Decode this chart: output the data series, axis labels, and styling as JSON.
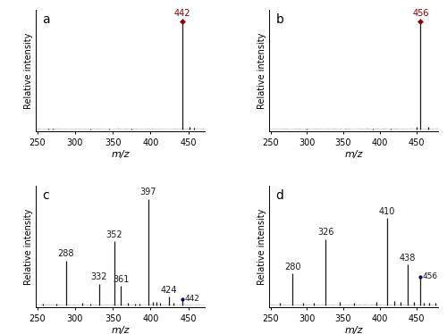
{
  "panels": [
    {
      "label": "a",
      "xlim": [
        248,
        472
      ],
      "xticks": [
        250,
        300,
        350,
        400,
        450
      ],
      "peaks": [
        {
          "mz": 442,
          "intensity": 100,
          "annotate": true,
          "main": true
        },
        {
          "mz": 452,
          "intensity": 2.0
        },
        {
          "mz": 458,
          "intensity": 1.5
        },
        {
          "mz": 375,
          "intensity": 0.6
        },
        {
          "mz": 265,
          "intensity": 0.5
        },
        {
          "mz": 271,
          "intensity": 0.4
        },
        {
          "mz": 320,
          "intensity": 0.5
        },
        {
          "mz": 345,
          "intensity": 0.4
        }
      ]
    },
    {
      "label": "b",
      "xlim": [
        248,
        480
      ],
      "xticks": [
        250,
        300,
        350,
        400,
        450
      ],
      "peaks": [
        {
          "mz": 456,
          "intensity": 100,
          "annotate": true,
          "main": true
        },
        {
          "mz": 450,
          "intensity": 2.5
        },
        {
          "mz": 466,
          "intensity": 2.0
        },
        {
          "mz": 415,
          "intensity": 0.8
        },
        {
          "mz": 390,
          "intensity": 0.5
        },
        {
          "mz": 300,
          "intensity": 0.4
        }
      ]
    },
    {
      "label": "c",
      "xlim": [
        248,
        472
      ],
      "xticks": [
        250,
        300,
        350,
        400,
        450
      ],
      "peaks": [
        {
          "mz": 288,
          "intensity": 42,
          "annotate": true
        },
        {
          "mz": 332,
          "intensity": 20,
          "annotate": true
        },
        {
          "mz": 352,
          "intensity": 60,
          "annotate": true
        },
        {
          "mz": 361,
          "intensity": 18,
          "annotate": true
        },
        {
          "mz": 397,
          "intensity": 100,
          "annotate": true
        },
        {
          "mz": 403,
          "intensity": 3
        },
        {
          "mz": 408,
          "intensity": 3
        },
        {
          "mz": 413,
          "intensity": 2.5
        },
        {
          "mz": 424,
          "intensity": 8,
          "annotate": true
        },
        {
          "mz": 430,
          "intensity": 2
        },
        {
          "mz": 442,
          "intensity": 5,
          "annotate": true,
          "precursor": true
        },
        {
          "mz": 258,
          "intensity": 1.5
        },
        {
          "mz": 275,
          "intensity": 1.5
        },
        {
          "mz": 310,
          "intensity": 2
        },
        {
          "mz": 320,
          "intensity": 1.5
        },
        {
          "mz": 370,
          "intensity": 2
        },
        {
          "mz": 380,
          "intensity": 1.5
        },
        {
          "mz": 385,
          "intensity": 1.5
        }
      ]
    },
    {
      "label": "d",
      "xlim": [
        248,
        480
      ],
      "xticks": [
        250,
        300,
        350,
        400,
        450
      ],
      "peaks": [
        {
          "mz": 280,
          "intensity": 30,
          "annotate": true
        },
        {
          "mz": 326,
          "intensity": 62,
          "annotate": true
        },
        {
          "mz": 410,
          "intensity": 82,
          "annotate": true
        },
        {
          "mz": 438,
          "intensity": 38,
          "annotate": true
        },
        {
          "mz": 456,
          "intensity": 26,
          "annotate": true,
          "precursor": true
        },
        {
          "mz": 263,
          "intensity": 2
        },
        {
          "mz": 295,
          "intensity": 2.5
        },
        {
          "mz": 310,
          "intensity": 2
        },
        {
          "mz": 345,
          "intensity": 3
        },
        {
          "mz": 365,
          "intensity": 2
        },
        {
          "mz": 395,
          "intensity": 3.5
        },
        {
          "mz": 420,
          "intensity": 4
        },
        {
          "mz": 428,
          "intensity": 3
        },
        {
          "mz": 447,
          "intensity": 3
        },
        {
          "mz": 460,
          "intensity": 2.5
        },
        {
          "mz": 468,
          "intensity": 2
        },
        {
          "mz": 476,
          "intensity": 2
        }
      ]
    }
  ],
  "xlabel": "m/z",
  "ylabel": "Relative intensity",
  "bg": "#ffffff",
  "peak_color": "#1a1a1a",
  "main_marker_color": "#8B0000",
  "precursor_marker_color": "#000080",
  "label_fs": 8,
  "tick_fs": 7,
  "annot_fs": 7,
  "panel_label_fs": 10
}
